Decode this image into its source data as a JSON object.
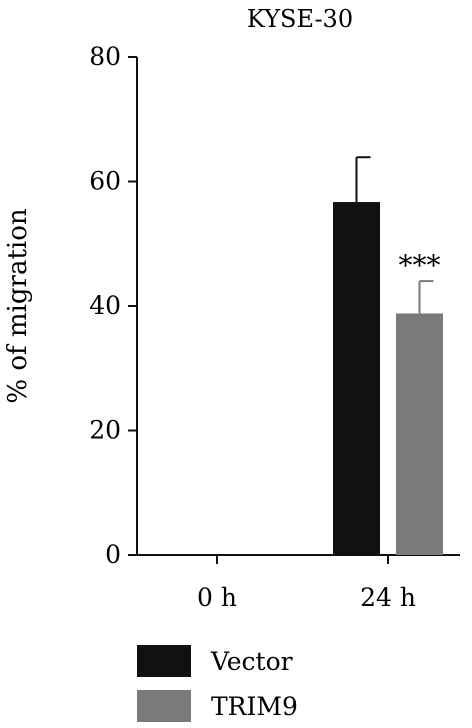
{
  "chart_data": {
    "type": "bar",
    "title": "KYSE-30",
    "xlabel": "",
    "ylabel": "% of migration",
    "categories": [
      "0 h",
      "24 h"
    ],
    "ylim": [
      0,
      80
    ],
    "yticks": [
      0,
      20,
      40,
      60,
      80
    ],
    "series": [
      {
        "name": "Vector",
        "color": "#111111",
        "values": [
          0,
          56.7
        ],
        "errors": [
          0,
          7.2
        ]
      },
      {
        "name": "TRIM9",
        "color": "#7a7a7a",
        "values": [
          0,
          38.8
        ],
        "errors": [
          0,
          5.2
        ]
      }
    ],
    "annotations": [
      {
        "text": "***",
        "category": "24 h",
        "series": "TRIM9"
      }
    ],
    "grid": false,
    "legend_position": "bottom-left"
  }
}
